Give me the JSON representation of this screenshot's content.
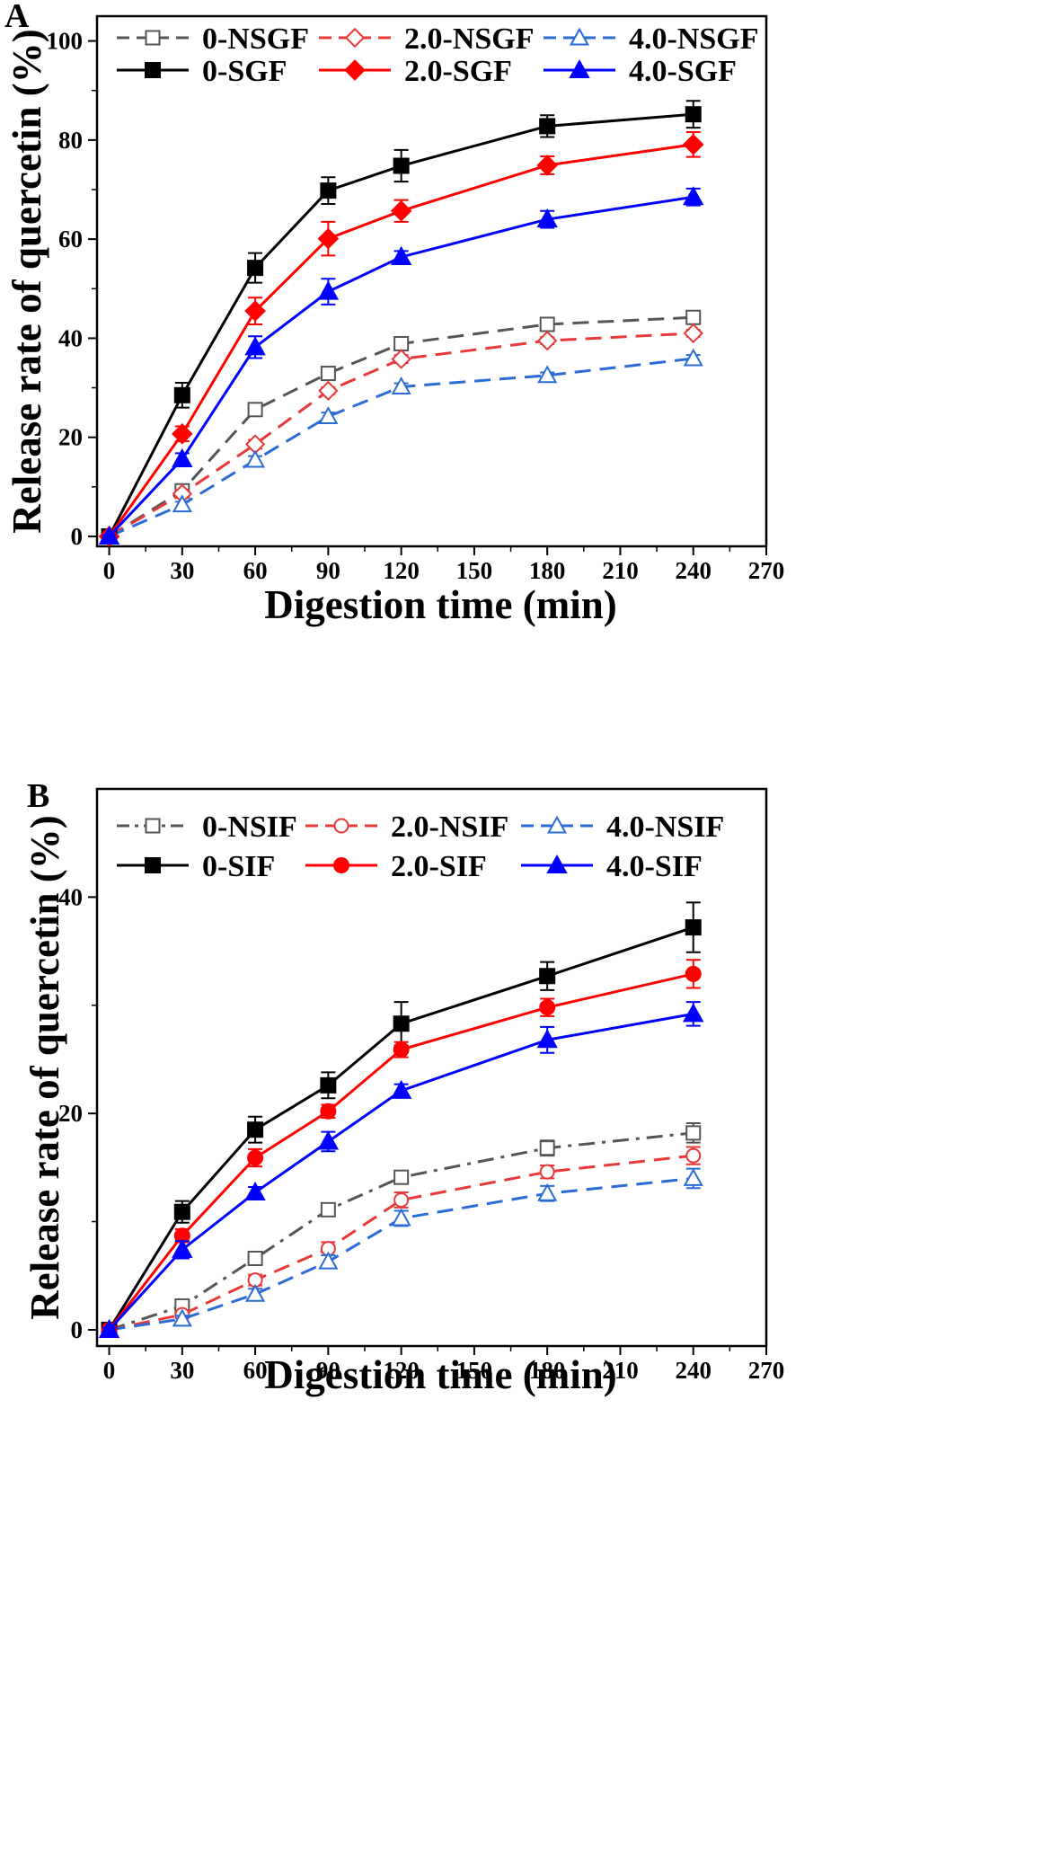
{
  "chart_data": [
    {
      "type": "line",
      "panel_label": "A",
      "xlabel": "Digestion time (min)",
      "ylabel": "Release rate of quercetin (%)",
      "xlim": [
        -5,
        270
      ],
      "ylim": [
        -2,
        105
      ],
      "xticks": [
        0,
        30,
        60,
        90,
        120,
        150,
        180,
        210,
        240,
        270
      ],
      "yticks": [
        0,
        20,
        40,
        60,
        80,
        100
      ],
      "x": [
        0,
        30,
        60,
        90,
        120,
        180,
        240
      ],
      "legend_position": "top",
      "series": [
        {
          "name": "0-NSGF",
          "color": "#555555",
          "dash": "dash",
          "marker": "square",
          "filled": false,
          "values": [
            0,
            9.2,
            25.6,
            32.9,
            38.9,
            42.8,
            44.2
          ],
          "errors": [
            0.3,
            0.8,
            0.7,
            0.6,
            0.7,
            0.6,
            0.6
          ]
        },
        {
          "name": "2.0-NSGF",
          "color": "#e8393a",
          "dash": "dash",
          "marker": "diamond",
          "filled": false,
          "values": [
            0,
            8.6,
            18.6,
            29.4,
            35.8,
            39.5,
            41.0
          ],
          "errors": [
            0.3,
            0.8,
            0.9,
            0.7,
            0.8,
            0.7,
            0.7
          ]
        },
        {
          "name": "4.0-NSGF",
          "color": "#2a6bd6",
          "dash": "dash",
          "marker": "triangle",
          "filled": false,
          "values": [
            0,
            6.4,
            15.4,
            24.2,
            30.2,
            32.5,
            35.9
          ],
          "errors": [
            0.3,
            0.6,
            0.8,
            0.8,
            0.7,
            0.6,
            0.7
          ]
        },
        {
          "name": "0-SGF",
          "color": "#000000",
          "dash": "solid",
          "marker": "square",
          "filled": true,
          "values": [
            0,
            28.5,
            54.2,
            69.8,
            74.8,
            82.8,
            85.2
          ],
          "errors": [
            0.3,
            2.5,
            3.0,
            2.7,
            3.2,
            2.2,
            2.7
          ]
        },
        {
          "name": "2.0-SGF",
          "color": "#ff0000",
          "dash": "solid",
          "marker": "diamond",
          "filled": true,
          "values": [
            0,
            20.7,
            45.5,
            60.1,
            65.7,
            74.9,
            79.1
          ],
          "errors": [
            0.3,
            1.5,
            2.7,
            3.4,
            2.2,
            1.8,
            2.5
          ]
        },
        {
          "name": "4.0-SGF",
          "color": "#0000ff",
          "dash": "solid",
          "marker": "triangle",
          "filled": true,
          "values": [
            0,
            15.6,
            38.2,
            49.4,
            56.4,
            64.0,
            68.5
          ],
          "errors": [
            0.3,
            1.2,
            2.2,
            2.6,
            1.2,
            1.7,
            1.7
          ]
        }
      ]
    },
    {
      "type": "line",
      "panel_label": "B",
      "xlabel": "Digestion time (min)",
      "ylabel": "Release rate of quercetin (%)",
      "xlim": [
        -5,
        270
      ],
      "ylim": [
        -1.5,
        50
      ],
      "xticks": [
        0,
        30,
        60,
        90,
        120,
        150,
        180,
        210,
        240,
        270
      ],
      "yticks": [
        0,
        20,
        40
      ],
      "x": [
        0,
        30,
        60,
        90,
        120,
        180,
        240
      ],
      "legend_position": "top",
      "series": [
        {
          "name": "0-NSIF",
          "color": "#555555",
          "dash": "dashdot",
          "marker": "square",
          "filled": false,
          "values": [
            0,
            2.2,
            6.6,
            11.1,
            14.1,
            16.8,
            18.2
          ],
          "errors": [
            0.2,
            0.4,
            0.6,
            0.5,
            0.6,
            0.7,
            0.9
          ]
        },
        {
          "name": "2.0-NSIF",
          "color": "#e8393a",
          "dash": "dash",
          "marker": "circle",
          "filled": false,
          "values": [
            0,
            1.4,
            4.6,
            7.5,
            12.0,
            14.6,
            16.1
          ],
          "errors": [
            0.2,
            0.3,
            0.5,
            0.6,
            0.7,
            0.6,
            0.8
          ]
        },
        {
          "name": "4.0-NSIF",
          "color": "#2a6bd6",
          "dash": "dash",
          "marker": "triangle",
          "filled": false,
          "values": [
            0,
            1.0,
            3.3,
            6.3,
            10.3,
            12.6,
            14.0
          ],
          "errors": [
            0.2,
            0.3,
            0.5,
            0.6,
            0.7,
            0.7,
            0.9
          ]
        },
        {
          "name": "0-SIF",
          "color": "#000000",
          "dash": "solid",
          "marker": "square",
          "filled": true,
          "values": [
            0,
            10.9,
            18.5,
            22.6,
            28.3,
            32.7,
            37.2
          ],
          "errors": [
            0.2,
            1.0,
            1.2,
            1.2,
            2.0,
            1.3,
            2.3
          ]
        },
        {
          "name": "2.0-SIF",
          "color": "#ff0000",
          "dash": "solid",
          "marker": "circle",
          "filled": true,
          "values": [
            0,
            8.7,
            15.9,
            20.2,
            25.9,
            29.8,
            32.9
          ],
          "errors": [
            0.2,
            0.6,
            0.8,
            0.6,
            0.7,
            0.8,
            1.3
          ]
        },
        {
          "name": "4.0-SIF",
          "color": "#0000ff",
          "dash": "solid",
          "marker": "triangle",
          "filled": true,
          "values": [
            0,
            7.4,
            12.7,
            17.4,
            22.1,
            26.8,
            29.2
          ],
          "errors": [
            0.2,
            0.8,
            0.5,
            0.9,
            0.6,
            1.2,
            1.1
          ]
        }
      ]
    }
  ]
}
